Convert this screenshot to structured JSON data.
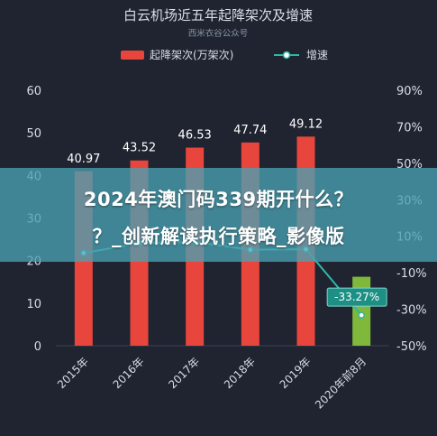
{
  "overlay": {
    "line1": "2024年澳门码339期开什么？",
    "line2": "？_创新解读执行策略_影像版"
  },
  "colors": {
    "background": "#1f2430",
    "bar": "#e8453c",
    "bar_highlight": "#7fb83a",
    "line": "#2fb7a8",
    "badge": "#1d8f84",
    "text": "#d8dde6",
    "grid": "#3a4150"
  },
  "chart_data": {
    "type": "bar",
    "title": "白云机场近五年起降架次及增速",
    "subtitle": "西米衣谷公众号",
    "categories": [
      "2015年",
      "2016年",
      "2017年",
      "2018年",
      "2019年",
      "2020年前8月"
    ],
    "series": [
      {
        "name": "起降架次(万架次)",
        "type": "bar",
        "axis": "left",
        "values": [
          40.97,
          43.52,
          46.53,
          47.74,
          49.12,
          16.2
        ],
        "labels": [
          "40.97",
          "43.52",
          "46.53",
          "47.74",
          "49.12",
          ""
        ]
      },
      {
        "name": "增速",
        "type": "line",
        "axis": "right",
        "values": [
          0.8,
          6.2,
          6.9,
          2.6,
          2.9,
          -33.27
        ],
        "labels": [
          "",
          "",
          "",
          "",
          "",
          "-33.27%"
        ]
      }
    ],
    "y_left": {
      "min": 0,
      "max": 60,
      "ticks": [
        "0",
        "10",
        "20",
        "30",
        "40",
        "50",
        "60"
      ]
    },
    "y_right": {
      "min": -50,
      "max": 90,
      "ticks": [
        "-50%",
        "-30%",
        "-10%",
        "10%",
        "30%",
        "50%",
        "70%",
        "90%"
      ]
    },
    "legend_position": "top",
    "grid": false
  }
}
